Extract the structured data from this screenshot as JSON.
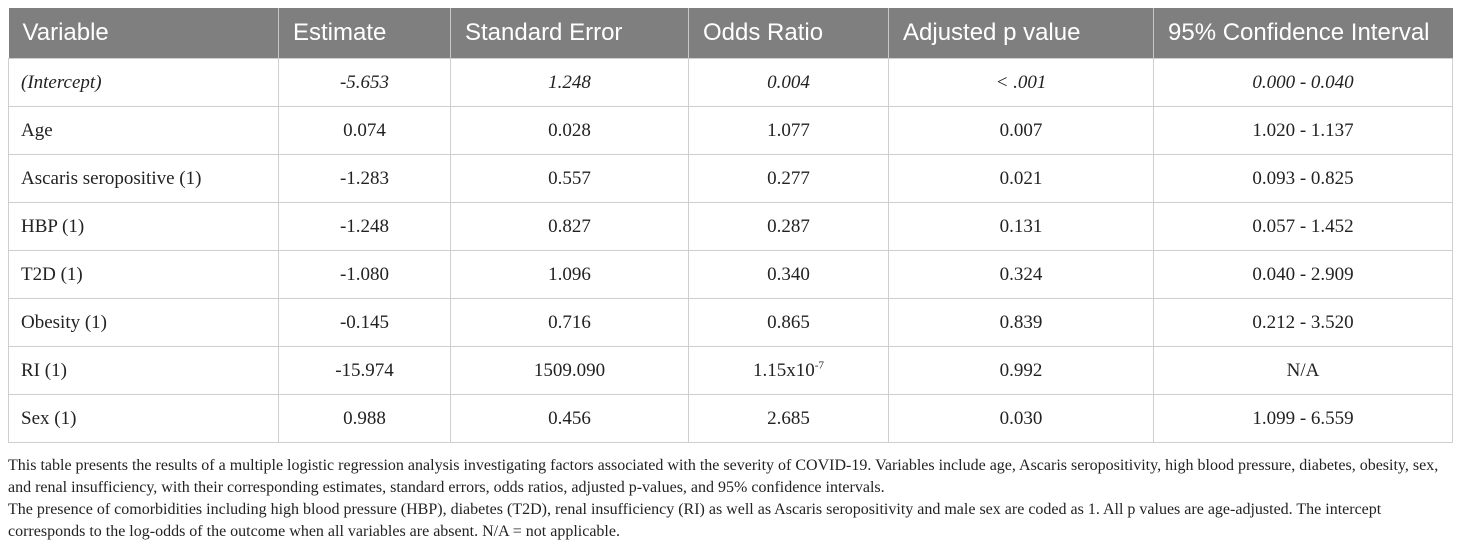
{
  "table": {
    "headers": [
      "Variable",
      "Estimate",
      "Standard Error",
      "Odds Ratio",
      "Adjusted p value",
      "95% Confidence Interval"
    ],
    "rows": [
      {
        "variable": "(Intercept)",
        "estimate": "-5.653",
        "se": "1.248",
        "odds_ratio": "0.004",
        "odds_sup": "",
        "p": "< .001",
        "ci": "0.000 - 0.040"
      },
      {
        "variable": "Age",
        "estimate": "0.074",
        "se": "0.028",
        "odds_ratio": "1.077",
        "odds_sup": "",
        "p": "0.007",
        "ci": "1.020 - 1.137"
      },
      {
        "variable": "Ascaris seropositive (1)",
        "estimate": "-1.283",
        "se": "0.557",
        "odds_ratio": "0.277",
        "odds_sup": "",
        "p": "0.021",
        "ci": "0.093 - 0.825"
      },
      {
        "variable": "HBP (1)",
        "estimate": "-1.248",
        "se": "0.827",
        "odds_ratio": "0.287",
        "odds_sup": "",
        "p": "0.131",
        "ci": "0.057 - 1.452"
      },
      {
        "variable": "T2D (1)",
        "estimate": "-1.080",
        "se": "1.096",
        "odds_ratio": "0.340",
        "odds_sup": "",
        "p": "0.324",
        "ci": "0.040 - 2.909"
      },
      {
        "variable": "Obesity (1)",
        "estimate": "-0.145",
        "se": "0.716",
        "odds_ratio": "0.865",
        "odds_sup": "",
        "p": "0.839",
        "ci": "0.212 - 3.520"
      },
      {
        "variable": "RI (1)",
        "estimate": "-15.974",
        "se": "1509.090",
        "odds_ratio": "1.15x10",
        "odds_sup": "-7",
        "p": "0.992",
        "ci": "N/A"
      },
      {
        "variable": "Sex (1)",
        "estimate": "0.988",
        "se": "0.456",
        "odds_ratio": "2.685",
        "odds_sup": "",
        "p": "0.030",
        "ci": "1.099 - 6.559"
      }
    ]
  },
  "footnotes": [
    "This table presents the results of a multiple logistic regression analysis investigating factors associated with the severity of COVID-19. Variables include age, Ascaris seropositivity, high blood pressure, diabetes, obesity, sex, and renal insufficiency, with their corresponding estimates, standard errors, odds ratios, adjusted p-values, and 95% confidence intervals.",
    "The presence of comorbidities including high blood pressure (HBP), diabetes (T2D), renal insufficiency (RI) as well as Ascaris seropositivity and male sex are coded as 1. All p values are age-adjusted. The intercept corresponds to the log-odds of the outcome when all variables are absent. N/A = not applicable."
  ]
}
